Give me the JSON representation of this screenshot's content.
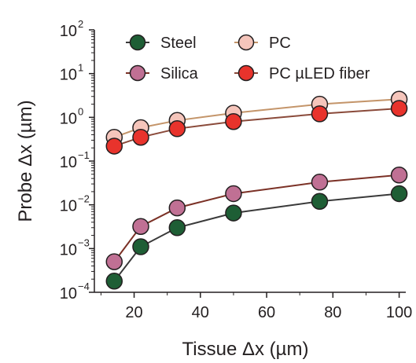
{
  "chart_data": {
    "type": "scatter",
    "xlabel": "Tissue Δx (µm)",
    "ylabel": "Probe Δx (µm)",
    "xlim": [
      8,
      102
    ],
    "ylim_log10": [
      -4,
      2
    ],
    "y_scale": "log",
    "x_ticks": [
      20,
      40,
      60,
      80,
      100
    ],
    "y_tick_exponents": [
      -4,
      -3,
      -2,
      -1,
      0,
      1,
      2
    ],
    "legend_placement": "top-right",
    "series": [
      {
        "name": "Steel",
        "marker_color": "#1e5e35",
        "line_color": "#3a3a3a",
        "points": [
          [
            14,
            0.00018
          ],
          [
            22,
            0.0011
          ],
          [
            33,
            0.003
          ],
          [
            50,
            0.0065
          ],
          [
            76,
            0.012
          ],
          [
            100,
            0.018
          ]
        ]
      },
      {
        "name": "Silica",
        "marker_color": "#c07094",
        "line_color": "#7b3126",
        "points": [
          [
            14,
            0.0005
          ],
          [
            22,
            0.0032
          ],
          [
            33,
            0.0085
          ],
          [
            50,
            0.018
          ],
          [
            76,
            0.033
          ],
          [
            100,
            0.048
          ]
        ]
      },
      {
        "name": "PC",
        "marker_color": "#f5c5bb",
        "line_color": "#c4956a",
        "points": [
          [
            14,
            0.35
          ],
          [
            22,
            0.58
          ],
          [
            33,
            0.85
          ],
          [
            50,
            1.25
          ],
          [
            76,
            2.0
          ],
          [
            100,
            2.6
          ]
        ]
      },
      {
        "name": "PC µLED fiber",
        "marker_color": "#e8332c",
        "line_color": "#8a4a3a",
        "points": [
          [
            14,
            0.22
          ],
          [
            22,
            0.35
          ],
          [
            33,
            0.55
          ],
          [
            50,
            0.8
          ],
          [
            76,
            1.2
          ],
          [
            100,
            1.6
          ]
        ]
      }
    ]
  }
}
